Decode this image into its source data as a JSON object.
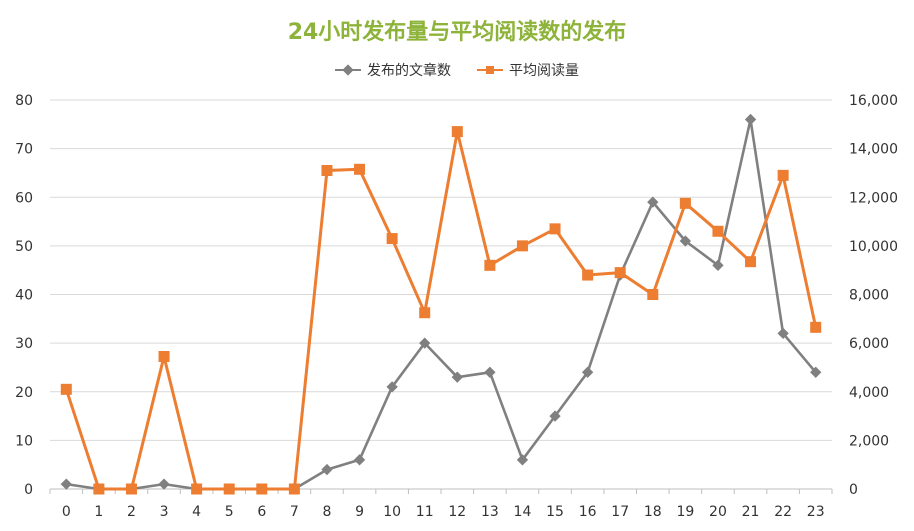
{
  "chart_data": {
    "type": "line",
    "title": "24小时发布量与平均阅读数的发布",
    "categories": [
      "0",
      "1",
      "2",
      "3",
      "4",
      "5",
      "6",
      "7",
      "8",
      "9",
      "10",
      "11",
      "12",
      "13",
      "14",
      "15",
      "16",
      "17",
      "18",
      "19",
      "20",
      "21",
      "22",
      "23"
    ],
    "series": [
      {
        "name": "发布的文章数",
        "axis": "left",
        "color": "#808080",
        "marker": "diamond",
        "values": [
          1,
          0,
          0,
          1,
          0,
          0,
          0,
          0,
          4,
          6,
          21,
          30,
          23,
          24,
          6,
          15,
          24,
          44,
          59,
          51,
          46,
          76,
          32,
          24
        ]
      },
      {
        "name": "平均阅读量",
        "axis": "right",
        "color": "#ed7d31",
        "marker": "square",
        "values": [
          4100,
          0,
          0,
          5450,
          0,
          0,
          0,
          0,
          13100,
          13150,
          10300,
          7250,
          14700,
          9200,
          10000,
          10700,
          8800,
          8900,
          8000,
          11750,
          10600,
          9350,
          12900,
          6650
        ]
      }
    ],
    "y_left": {
      "min": 0,
      "max": 80,
      "ticks": [
        "0",
        "10",
        "20",
        "30",
        "40",
        "50",
        "60",
        "70",
        "80"
      ]
    },
    "y_right": {
      "min": 0,
      "max": 16000,
      "ticks": [
        "0",
        "2,000",
        "4,000",
        "6,000",
        "8,000",
        "10,000",
        "12,000",
        "14,000",
        "16,000"
      ]
    },
    "grid": true,
    "legend_position": "top"
  }
}
